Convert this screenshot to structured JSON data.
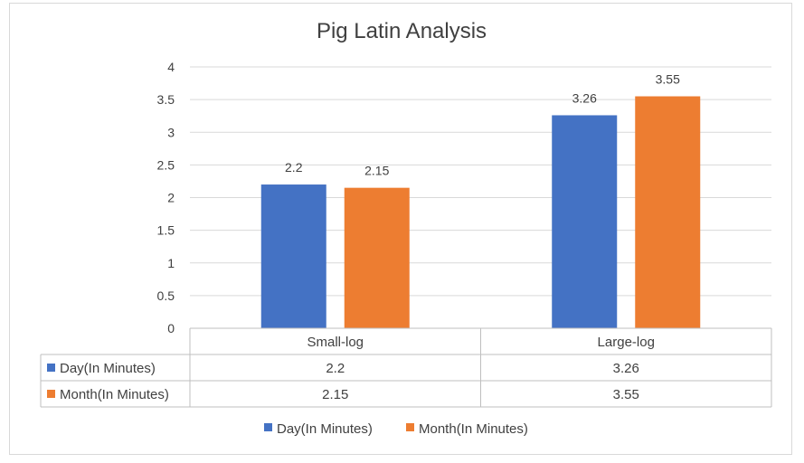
{
  "chart_data": {
    "type": "bar",
    "title": "Pig Latin Analysis",
    "categories": [
      "Small-log",
      "Large-log"
    ],
    "series": [
      {
        "name": "Day(In Minutes)",
        "values": [
          2.2,
          3.26
        ],
        "color": "#4472C4"
      },
      {
        "name": "Month(In Minutes)",
        "values": [
          2.15,
          3.55
        ],
        "color": "#ED7D31"
      }
    ],
    "ylim": [
      0,
      4
    ],
    "yticks": [
      "0",
      "0.5",
      "1",
      "1.5",
      "2",
      "2.5",
      "3",
      "3.5",
      "4"
    ],
    "ytick_values": [
      0,
      0.5,
      1,
      1.5,
      2,
      2.5,
      3,
      3.5,
      4
    ],
    "data_labels": [
      [
        "2.2",
        "3.26"
      ],
      [
        "2.15",
        "3.55"
      ]
    ],
    "grid": true,
    "legend": "bottom",
    "data_table": true
  }
}
